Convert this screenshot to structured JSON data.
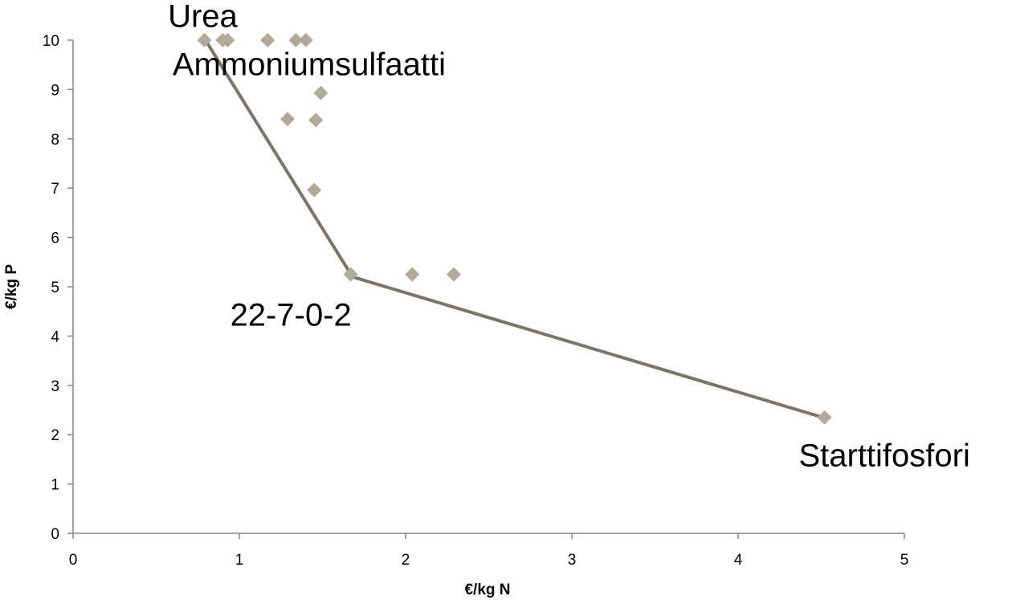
{
  "chart_data": {
    "type": "scatter",
    "title": "",
    "xlabel": "€/kg N",
    "ylabel": "€/kg P",
    "xlim": [
      0,
      5
    ],
    "ylim": [
      0,
      10
    ],
    "x_ticks": [
      "0",
      "1",
      "2",
      "3",
      "4",
      "5"
    ],
    "y_ticks": [
      "0",
      "1",
      "2",
      "3",
      "4",
      "5",
      "6",
      "7",
      "8",
      "9",
      "10"
    ],
    "grid": false,
    "legend": "none",
    "series": [
      {
        "type": "scatter",
        "color": "#b2a999",
        "points": [
          {
            "x": 0.79,
            "y": 10.0
          },
          {
            "x": 0.9,
            "y": 10.0
          },
          {
            "x": 0.93,
            "y": 10.0
          },
          {
            "x": 1.17,
            "y": 10.0
          },
          {
            "x": 1.34,
            "y": 10.0
          },
          {
            "x": 1.4,
            "y": 10.0
          },
          {
            "x": 1.49,
            "y": 8.93
          },
          {
            "x": 1.29,
            "y": 8.4
          },
          {
            "x": 1.46,
            "y": 8.38
          },
          {
            "x": 1.45,
            "y": 6.96
          },
          {
            "x": 1.67,
            "y": 5.25
          },
          {
            "x": 2.04,
            "y": 5.25
          },
          {
            "x": 2.29,
            "y": 5.25
          },
          {
            "x": 4.52,
            "y": 2.35
          }
        ]
      },
      {
        "type": "line",
        "color": "#7c7466",
        "points": [
          {
            "x": 0.8,
            "y": 9.98
          },
          {
            "x": 1.68,
            "y": 5.2
          },
          {
            "x": 4.5,
            "y": 2.36
          }
        ]
      }
    ],
    "annotations": [
      {
        "text": "Urea",
        "x": 0.78,
        "y": 10.27
      },
      {
        "text": "Ammoniumsulfaatti",
        "x": 1.42,
        "y": 9.29
      },
      {
        "text": "22-7-0-2",
        "x": 1.31,
        "y": 4.21
      },
      {
        "text": "Starttifosfori",
        "x": 4.88,
        "y": 1.36
      }
    ]
  }
}
